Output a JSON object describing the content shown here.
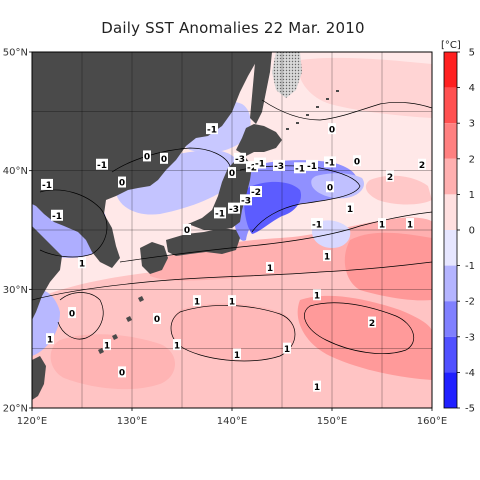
{
  "title": "Daily SST Anomalies 22 Mar. 2010",
  "map": {
    "lon_range": [
      120,
      160
    ],
    "lat_range": [
      20,
      50
    ],
    "lon_ticks": [
      {
        "value": 120,
        "label": "120°E"
      },
      {
        "value": 130,
        "label": "130°E"
      },
      {
        "value": 140,
        "label": "140°E"
      },
      {
        "value": 150,
        "label": "150°E"
      },
      {
        "value": 160,
        "label": "160°E"
      }
    ],
    "lat_ticks": [
      {
        "value": 20,
        "label": "20°N"
      },
      {
        "value": 30,
        "label": "30°N"
      },
      {
        "value": 40,
        "label": "40°N"
      },
      {
        "value": 50,
        "label": "50°N"
      }
    ],
    "land_color": "#4a4a4a",
    "ice_color": "#c8c8c8",
    "contour_labels": [
      {
        "text": "-1",
        "lon": 138.0,
        "lat": 43.5
      },
      {
        "text": "0",
        "lon": 131.5,
        "lat": 41.2
      },
      {
        "text": "-1",
        "lon": 127.0,
        "lat": 40.5
      },
      {
        "text": "-1",
        "lon": 121.5,
        "lat": 38.8
      },
      {
        "text": "0",
        "lon": 129.0,
        "lat": 39.0
      },
      {
        "text": "-1",
        "lon": 122.5,
        "lat": 36.2
      },
      {
        "text": "-3",
        "lon": 140.8,
        "lat": 41.0
      },
      {
        "text": "-2",
        "lon": 142.0,
        "lat": 40.3
      },
      {
        "text": "-1",
        "lon": 142.8,
        "lat": 40.6
      },
      {
        "text": "-3",
        "lon": 144.7,
        "lat": 40.4
      },
      {
        "text": "-1",
        "lon": 146.8,
        "lat": 40.2
      },
      {
        "text": "-1",
        "lon": 148.0,
        "lat": 40.4
      },
      {
        "text": "-1",
        "lon": 149.8,
        "lat": 40.7
      },
      {
        "text": "0",
        "lon": 152.5,
        "lat": 40.8
      },
      {
        "text": "0",
        "lon": 150.0,
        "lat": 43.5
      },
      {
        "text": "0",
        "lon": 140.0,
        "lat": 39.8
      },
      {
        "text": "0",
        "lon": 133.2,
        "lat": 41.0
      },
      {
        "text": "-2",
        "lon": 142.4,
        "lat": 38.2
      },
      {
        "text": "-3",
        "lon": 141.4,
        "lat": 37.5
      },
      {
        "text": "-3",
        "lon": 140.2,
        "lat": 36.8
      },
      {
        "text": "-1",
        "lon": 138.8,
        "lat": 36.4
      },
      {
        "text": "0",
        "lon": 149.8,
        "lat": 38.6
      },
      {
        "text": "2",
        "lon": 155.8,
        "lat": 39.5
      },
      {
        "text": "2",
        "lon": 159.0,
        "lat": 40.5
      },
      {
        "text": "1",
        "lon": 151.8,
        "lat": 36.8
      },
      {
        "text": "1",
        "lon": 155.0,
        "lat": 35.5
      },
      {
        "text": "1",
        "lon": 157.8,
        "lat": 35.5
      },
      {
        "text": "-1",
        "lon": 148.5,
        "lat": 35.5
      },
      {
        "text": "0",
        "lon": 135.5,
        "lat": 35.0
      },
      {
        "text": "1",
        "lon": 125.0,
        "lat": 32.2
      },
      {
        "text": "1",
        "lon": 143.8,
        "lat": 31.8
      },
      {
        "text": "1",
        "lon": 149.5,
        "lat": 32.8
      },
      {
        "text": "0",
        "lon": 124.0,
        "lat": 28.0
      },
      {
        "text": "1",
        "lon": 136.5,
        "lat": 29.0
      },
      {
        "text": "0",
        "lon": 132.5,
        "lat": 27.5
      },
      {
        "text": "1",
        "lon": 140.0,
        "lat": 29.0
      },
      {
        "text": "1",
        "lon": 148.5,
        "lat": 29.5
      },
      {
        "text": "2",
        "lon": 154.0,
        "lat": 27.2
      },
      {
        "text": "1",
        "lon": 121.8,
        "lat": 25.8
      },
      {
        "text": "1",
        "lon": 127.5,
        "lat": 25.3
      },
      {
        "text": "1",
        "lon": 134.5,
        "lat": 25.3
      },
      {
        "text": "1",
        "lon": 140.5,
        "lat": 24.5
      },
      {
        "text": "1",
        "lon": 145.5,
        "lat": 25.0
      },
      {
        "text": "0",
        "lon": 129.0,
        "lat": 23.0
      },
      {
        "text": "1",
        "lon": 148.5,
        "lat": 21.8
      }
    ]
  },
  "colorbar": {
    "unit_label": "[°C]",
    "ticks": [
      "5",
      "4",
      "3",
      "2",
      "1",
      "0",
      "-1",
      "-2",
      "-3",
      "-4",
      "-5"
    ],
    "levels": [
      {
        "lo": 4,
        "hi": 5,
        "color": "#ff2020"
      },
      {
        "lo": 3,
        "hi": 4,
        "color": "#ff5050"
      },
      {
        "lo": 2,
        "hi": 3,
        "color": "#ff8080"
      },
      {
        "lo": 1,
        "hi": 2,
        "color": "#ffb0b0"
      },
      {
        "lo": 0,
        "hi": 1,
        "color": "#ffe0e0"
      },
      {
        "lo": -1,
        "hi": 0,
        "color": "#e6e6ff"
      },
      {
        "lo": -2,
        "hi": -1,
        "color": "#b4b4ff"
      },
      {
        "lo": -3,
        "hi": -2,
        "color": "#8080ff"
      },
      {
        "lo": -4,
        "hi": -3,
        "color": "#5050ff"
      },
      {
        "lo": -5,
        "hi": -4,
        "color": "#2020ff"
      }
    ]
  }
}
